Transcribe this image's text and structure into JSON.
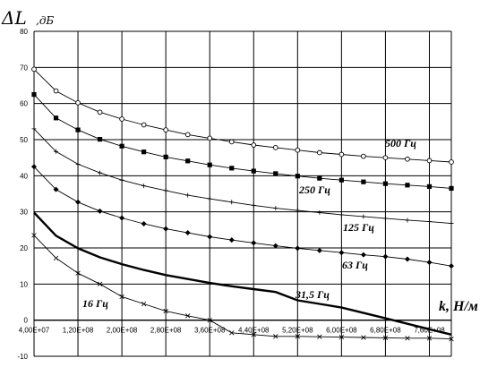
{
  "chart_data": {
    "type": "line",
    "ylabel": "ΔL",
    "ylabel_unit": ",дБ",
    "xlabel": "k, Н/м",
    "xlim": [
      40000000,
      800000000
    ],
    "ylim": [
      -10,
      80
    ],
    "y_ticks": [
      -10,
      0,
      10,
      20,
      30,
      40,
      50,
      60,
      70,
      80
    ],
    "x_ticks": [
      40000000,
      120000000,
      200000000,
      280000000,
      360000000,
      440000000,
      520000000,
      600000000,
      680000000,
      760000000
    ],
    "x_tick_labels": [
      "4,00E+07",
      "1,20E+08",
      "2,00E+08",
      "2,80E+08",
      "3,60E+08",
      "4,40E+08",
      "5,20E+08",
      "6,00E+08",
      "6,80E+08",
      "7,60E+08"
    ],
    "grid": true,
    "series": [
      {
        "name": "500 Гц",
        "marker": "circle-open",
        "x": [
          40000000,
          80000000,
          120000000,
          160000000,
          200000000,
          240000000,
          280000000,
          320000000,
          360000000,
          400000000,
          440000000,
          480000000,
          520000000,
          560000000,
          600000000,
          640000000,
          680000000,
          720000000,
          760000000,
          800000000
        ],
        "y": [
          69.5,
          63.5,
          60.2,
          57.6,
          55.7,
          54.1,
          52.7,
          51.4,
          50.4,
          49.4,
          48.5,
          47.8,
          47.1,
          46.4,
          45.9,
          45.4,
          45.0,
          44.6,
          44.2,
          43.8
        ]
      },
      {
        "name": "250 Гц",
        "marker": "square",
        "x": [
          40000000,
          80000000,
          120000000,
          160000000,
          200000000,
          240000000,
          280000000,
          320000000,
          360000000,
          400000000,
          440000000,
          480000000,
          520000000,
          560000000,
          600000000,
          640000000,
          680000000,
          720000000,
          760000000,
          800000000
        ],
        "y": [
          62.5,
          56.0,
          52.7,
          50.1,
          48.2,
          46.6,
          45.2,
          44.1,
          43.0,
          42.1,
          41.3,
          40.6,
          39.9,
          39.3,
          38.8,
          38.3,
          37.8,
          37.4,
          37.0,
          36.5
        ]
      },
      {
        "name": "125 Гц",
        "marker": "plus",
        "x": [
          40000000,
          80000000,
          120000000,
          160000000,
          200000000,
          240000000,
          280000000,
          320000000,
          360000000,
          400000000,
          440000000,
          480000000,
          520000000,
          560000000,
          600000000,
          640000000,
          680000000,
          720000000,
          760000000,
          800000000
        ],
        "y": [
          53.0,
          46.7,
          43.2,
          40.8,
          38.8,
          37.2,
          35.9,
          34.6,
          33.6,
          32.7,
          31.8,
          31.0,
          30.4,
          29.8,
          29.2,
          28.7,
          28.2,
          27.7,
          27.3,
          26.8
        ]
      },
      {
        "name": "63 Гц",
        "marker": "diamond",
        "x": [
          40000000,
          80000000,
          120000000,
          160000000,
          200000000,
          240000000,
          280000000,
          320000000,
          360000000,
          400000000,
          440000000,
          480000000,
          520000000,
          560000000,
          600000000,
          640000000,
          680000000,
          720000000,
          760000000,
          800000000
        ],
        "y": [
          42.5,
          36.2,
          32.7,
          30.2,
          28.3,
          26.7,
          25.3,
          24.2,
          23.1,
          22.2,
          21.4,
          20.6,
          19.9,
          19.3,
          18.7,
          18.1,
          17.6,
          16.9,
          16.0,
          15.0
        ]
      },
      {
        "name": "31,5 Гц",
        "marker": "none",
        "x": [
          40000000,
          80000000,
          120000000,
          160000000,
          200000000,
          240000000,
          280000000,
          320000000,
          360000000,
          400000000,
          440000000,
          480000000,
          520000000,
          560000000,
          600000000,
          640000000,
          680000000,
          720000000,
          760000000,
          800000000
        ],
        "y": [
          29.8,
          23.4,
          19.9,
          17.4,
          15.5,
          13.9,
          12.5,
          11.4,
          10.3,
          9.4,
          8.6,
          7.8,
          5.5,
          4.5,
          3.5,
          2.0,
          0.5,
          -1.0,
          -2.5,
          -4.0
        ]
      },
      {
        "name": "16 Гц",
        "marker": "x",
        "x": [
          40000000,
          80000000,
          120000000,
          160000000,
          200000000,
          240000000,
          280000000,
          320000000,
          360000000,
          400000000,
          440000000,
          480000000,
          520000000,
          560000000,
          600000000,
          640000000,
          680000000,
          720000000,
          760000000,
          800000000
        ],
        "y": [
          23.5,
          17.2,
          13.0,
          10.0,
          6.5,
          4.5,
          2.5,
          1.2,
          0.0,
          -3.5,
          -4.0,
          -4.5,
          -4.5,
          -4.6,
          -4.7,
          -4.8,
          -4.9,
          -5.0,
          -5.0,
          -5.2
        ]
      }
    ]
  }
}
